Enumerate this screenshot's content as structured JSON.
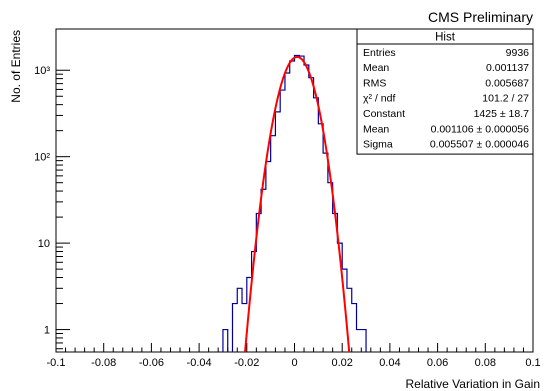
{
  "header": {
    "text": "CMS Preliminary"
  },
  "chart_data": {
    "type": "histogram",
    "xlabel": "Relative Variation in Gain",
    "ylabel": "No. of Entries",
    "xlim": [
      -0.1,
      0.1
    ],
    "ylim": [
      0.55,
      3000
    ],
    "log_y": true,
    "x_ticks": [
      "-0.1",
      "-0.08",
      "-0.06",
      "-0.04",
      "-0.02",
      "0",
      "0.02",
      "0.04",
      "0.06",
      "0.08",
      "0.1"
    ],
    "y_ticks": [
      {
        "value": 1,
        "label": "1"
      },
      {
        "value": 10,
        "label": "10"
      },
      {
        "value": 100,
        "label": "10²"
      },
      {
        "value": 1000,
        "label": "10³"
      }
    ],
    "bin_width": 0.002,
    "histogram_color": "#000099",
    "fit_color": "#ff0000",
    "bins": [
      {
        "x": -0.03,
        "count": 1
      },
      {
        "x": -0.028,
        "count": 0
      },
      {
        "x": -0.026,
        "count": 2
      },
      {
        "x": -0.024,
        "count": 3
      },
      {
        "x": -0.022,
        "count": 2
      },
      {
        "x": -0.02,
        "count": 4
      },
      {
        "x": -0.018,
        "count": 8
      },
      {
        "x": -0.016,
        "count": 22
      },
      {
        "x": -0.014,
        "count": 42
      },
      {
        "x": -0.012,
        "count": 88
      },
      {
        "x": -0.01,
        "count": 175
      },
      {
        "x": -0.008,
        "count": 330
      },
      {
        "x": -0.006,
        "count": 590
      },
      {
        "x": -0.004,
        "count": 930
      },
      {
        "x": -0.002,
        "count": 1280
      },
      {
        "x": 0.0,
        "count": 1480
      },
      {
        "x": 0.002,
        "count": 1460
      },
      {
        "x": 0.004,
        "count": 1150
      },
      {
        "x": 0.006,
        "count": 820
      },
      {
        "x": 0.008,
        "count": 480
      },
      {
        "x": 0.01,
        "count": 240
      },
      {
        "x": 0.012,
        "count": 110
      },
      {
        "x": 0.014,
        "count": 50
      },
      {
        "x": 0.016,
        "count": 22
      },
      {
        "x": 0.018,
        "count": 10
      },
      {
        "x": 0.02,
        "count": 5
      },
      {
        "x": 0.022,
        "count": 3
      },
      {
        "x": 0.024,
        "count": 2
      },
      {
        "x": 0.026,
        "count": 1
      },
      {
        "x": 0.028,
        "count": 1
      }
    ],
    "fit": {
      "constant": 1425,
      "mean": 0.001106,
      "sigma": 0.005507
    },
    "stats_box": {
      "title": "Hist",
      "rows": [
        {
          "label": "Entries",
          "value": "9936"
        },
        {
          "label": "Mean",
          "value": "0.001137"
        },
        {
          "label": "RMS",
          "value": "0.005687"
        },
        {
          "label": "χ² / ndf",
          "value": "101.2 / 27"
        },
        {
          "label": "Constant",
          "value": "1425 ± 18.7"
        },
        {
          "label": "Mean",
          "value": "0.001106 ± 0.000056"
        },
        {
          "label": "Sigma",
          "value": "0.005507 ± 0.000046"
        }
      ]
    }
  }
}
